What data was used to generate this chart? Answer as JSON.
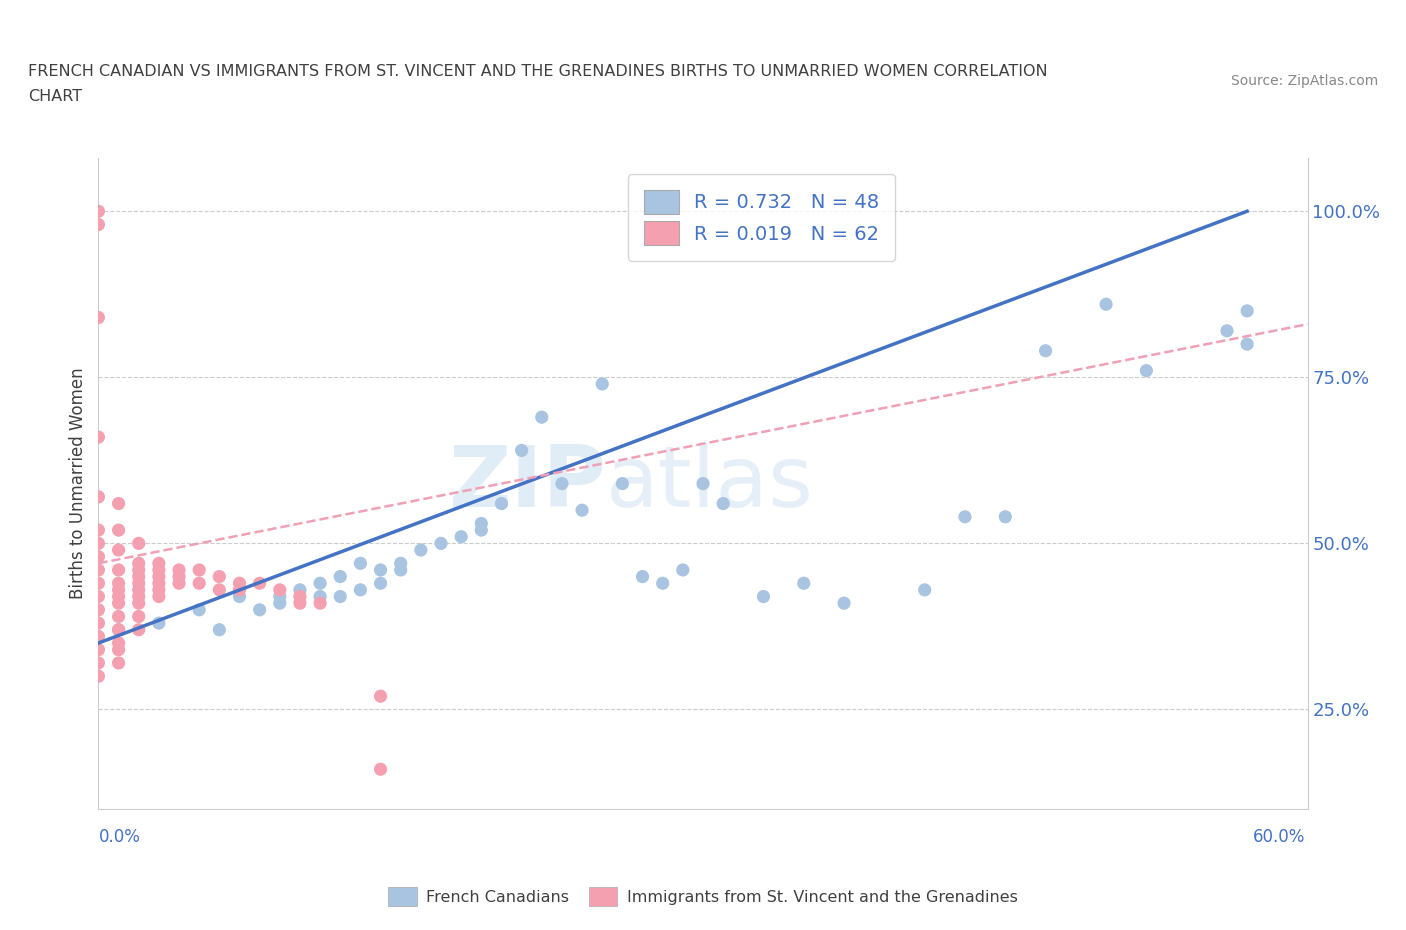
{
  "title_line1": "FRENCH CANADIAN VS IMMIGRANTS FROM ST. VINCENT AND THE GRENADINES BIRTHS TO UNMARRIED WOMEN CORRELATION",
  "title_line2": "CHART",
  "source": "Source: ZipAtlas.com",
  "ylabel": "Births to Unmarried Women",
  "ytick_labels": [
    "25.0%",
    "50.0%",
    "75.0%",
    "100.0%"
  ],
  "ytick_values": [
    0.25,
    0.5,
    0.75,
    1.0
  ],
  "xlim": [
    0.0,
    0.6
  ],
  "ylim": [
    0.1,
    1.08
  ],
  "legend_r1": "R = 0.732   N = 48",
  "legend_r2": "R = 0.019   N = 62",
  "blue_color": "#a8c4e0",
  "pink_color": "#f4a0b0",
  "blue_line_color": "#4472c4",
  "pink_line_color": "#f0a0b5",
  "watermark_zip": "ZIP",
  "watermark_atlas": "atlas",
  "blue_scatter_x": [
    0.01,
    0.03,
    0.05,
    0.06,
    0.07,
    0.08,
    0.09,
    0.09,
    0.1,
    0.11,
    0.11,
    0.12,
    0.12,
    0.13,
    0.13,
    0.14,
    0.14,
    0.15,
    0.15,
    0.16,
    0.17,
    0.18,
    0.19,
    0.19,
    0.2,
    0.21,
    0.22,
    0.23,
    0.24,
    0.25,
    0.26,
    0.27,
    0.28,
    0.29,
    0.3,
    0.31,
    0.33,
    0.35,
    0.37,
    0.41,
    0.43,
    0.45,
    0.47,
    0.5,
    0.52,
    0.56,
    0.57,
    0.57
  ],
  "blue_scatter_y": [
    0.37,
    0.38,
    0.4,
    0.37,
    0.42,
    0.4,
    0.42,
    0.41,
    0.43,
    0.42,
    0.44,
    0.42,
    0.45,
    0.43,
    0.47,
    0.44,
    0.46,
    0.46,
    0.47,
    0.49,
    0.5,
    0.51,
    0.52,
    0.53,
    0.56,
    0.64,
    0.69,
    0.59,
    0.55,
    0.74,
    0.59,
    0.45,
    0.44,
    0.46,
    0.59,
    0.56,
    0.42,
    0.44,
    0.41,
    0.43,
    0.54,
    0.54,
    0.79,
    0.86,
    0.76,
    0.82,
    0.85,
    0.8
  ],
  "pink_scatter_x": [
    0.0,
    0.0,
    0.0,
    0.0,
    0.0,
    0.0,
    0.0,
    0.0,
    0.0,
    0.0,
    0.0,
    0.0,
    0.0,
    0.0,
    0.0,
    0.0,
    0.0,
    0.01,
    0.01,
    0.01,
    0.01,
    0.01,
    0.01,
    0.01,
    0.01,
    0.01,
    0.01,
    0.01,
    0.01,
    0.01,
    0.02,
    0.02,
    0.02,
    0.02,
    0.02,
    0.02,
    0.02,
    0.02,
    0.02,
    0.02,
    0.03,
    0.03,
    0.03,
    0.03,
    0.03,
    0.03,
    0.04,
    0.04,
    0.04,
    0.05,
    0.05,
    0.06,
    0.06,
    0.07,
    0.07,
    0.08,
    0.09,
    0.1,
    0.1,
    0.11,
    0.14,
    0.14
  ],
  "pink_scatter_y": [
    1.0,
    0.98,
    0.84,
    0.66,
    0.57,
    0.52,
    0.5,
    0.48,
    0.46,
    0.44,
    0.42,
    0.4,
    0.38,
    0.36,
    0.34,
    0.32,
    0.3,
    0.56,
    0.52,
    0.49,
    0.46,
    0.44,
    0.43,
    0.42,
    0.41,
    0.39,
    0.37,
    0.35,
    0.34,
    0.32,
    0.5,
    0.47,
    0.46,
    0.45,
    0.44,
    0.43,
    0.42,
    0.41,
    0.39,
    0.37,
    0.47,
    0.46,
    0.45,
    0.44,
    0.43,
    0.42,
    0.46,
    0.45,
    0.44,
    0.46,
    0.44,
    0.45,
    0.43,
    0.44,
    0.43,
    0.44,
    0.43,
    0.42,
    0.41,
    0.41,
    0.27,
    0.16
  ],
  "blue_trend_x": [
    0.0,
    0.57
  ],
  "blue_trend_y": [
    0.35,
    1.0
  ],
  "pink_trend_x": [
    0.0,
    0.6
  ],
  "pink_trend_y": [
    0.47,
    0.83
  ],
  "grid_color": "#cccccc",
  "title_color": "#404040",
  "axis_label_color": "#404040",
  "tick_label_color": "#4472c4"
}
